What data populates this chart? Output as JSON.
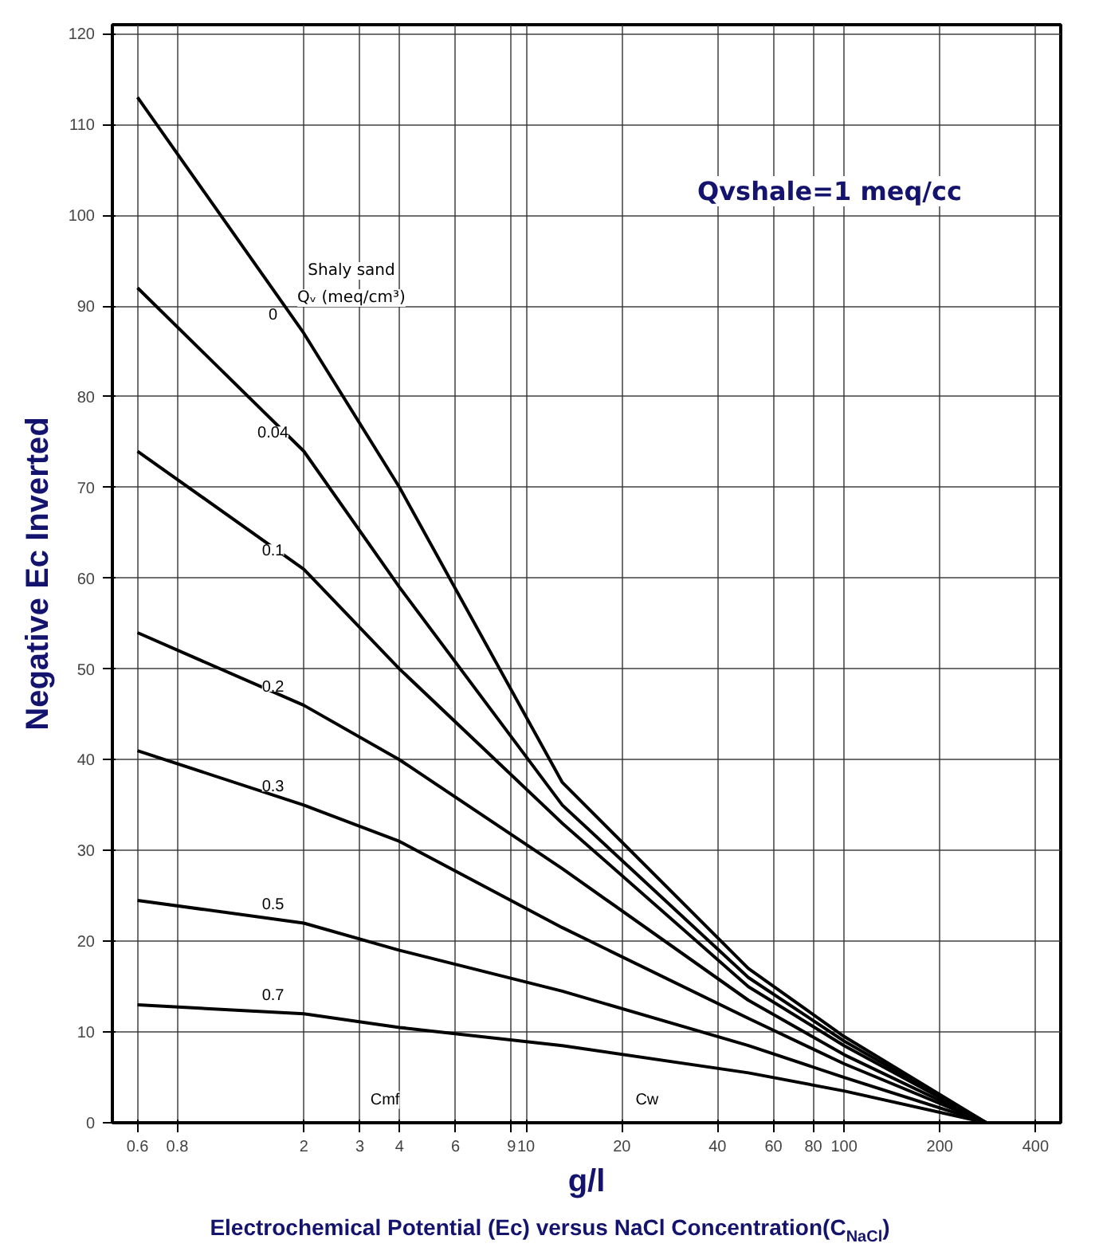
{
  "chart_data": {
    "type": "line",
    "title": "Electrochemical Potential (Ec) versus NaCl Concentration(C$_{NaCl}$)",
    "xlabel": "g/l",
    "ylabel": "Negative Ec Inverted",
    "log": "x",
    "grid": true,
    "marker": "none",
    "line_style": "solid",
    "x": [
      0.6,
      2,
      4,
      13,
      50,
      100,
      280
    ],
    "series": [
      {
        "name": "0",
        "color": "#000000",
        "values": [
          113,
          87,
          70,
          37.5,
          17,
          9.5,
          0
        ]
      },
      {
        "name": "0.04",
        "color": "#000000",
        "values": [
          92,
          74,
          59,
          35,
          16,
          9,
          0
        ]
      },
      {
        "name": "0.1",
        "color": "#000000",
        "values": [
          74,
          61,
          50,
          33,
          15,
          8.5,
          0
        ]
      },
      {
        "name": "0.2",
        "color": "#000000",
        "values": [
          54,
          46,
          40,
          28,
          13.5,
          7.5,
          0
        ]
      },
      {
        "name": "0.3",
        "color": "#000000",
        "values": [
          41,
          35,
          31,
          21.5,
          11.5,
          6.5,
          0
        ]
      },
      {
        "name": "0.5",
        "color": "#000000",
        "values": [
          24.5,
          22,
          19,
          14.5,
          8.5,
          5,
          0
        ]
      },
      {
        "name": "0.7",
        "color": "#000000",
        "values": [
          13,
          12,
          10.5,
          8.5,
          5.5,
          3.5,
          0
        ]
      }
    ],
    "xlim": [
      0.5,
      480
    ],
    "ylim": [
      0,
      121
    ],
    "xticks": [
      0.6,
      0.8,
      2,
      3,
      4,
      6,
      9,
      10,
      20,
      40,
      60,
      80,
      100,
      200,
      400
    ],
    "yticks": [
      0,
      10,
      20,
      30,
      40,
      50,
      60,
      70,
      80,
      90,
      100,
      110,
      120
    ],
    "annotations": [
      "Shaly sand",
      "Qᵥ (meq/cm³)",
      "Qvshale=1 meq/cc",
      {
        "text": "Cmf",
        "x": 3.6,
        "y": 2.5
      },
      {
        "text": "Cw",
        "x": 24,
        "y": 2.5
      }
    ]
  }
}
